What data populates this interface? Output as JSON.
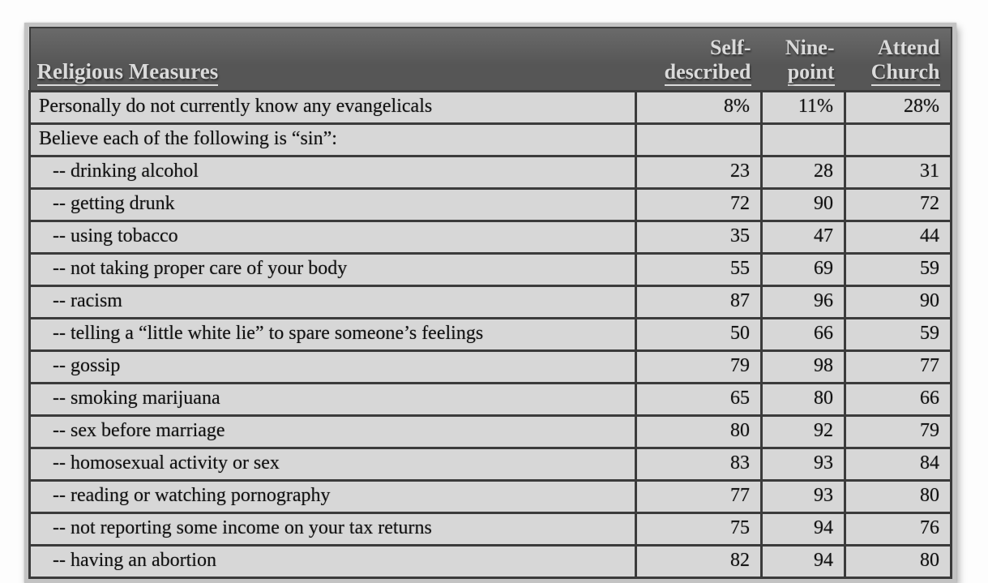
{
  "colors": {
    "page_bg": "#fdfdfd",
    "frame": "#c3c3c3",
    "header_bg": "#565656",
    "header_text": "#dadada",
    "row_bg": "#d7d7d7",
    "border_color": "#3b3b3b",
    "text": "#121212"
  },
  "chart_data": {
    "type": "table",
    "corner_header": "Religious Measures",
    "columns": [
      {
        "label": "Self-described",
        "line1": "Self-",
        "line2": "described"
      },
      {
        "label": "Nine-point",
        "line1": "Nine-",
        "line2": "point"
      },
      {
        "label": "Attend Church",
        "line1": "Attend",
        "line2": "Church"
      }
    ],
    "rows": [
      {
        "label": "Personally do not currently know any evangelicals",
        "indent": false,
        "values": [
          "8%",
          "11%",
          "28%"
        ]
      },
      {
        "label": "Believe each of the following is “sin”:",
        "indent": false,
        "values": [
          "",
          "",
          ""
        ]
      },
      {
        "label": "-- drinking alcohol",
        "indent": true,
        "values": [
          "23",
          "28",
          "31"
        ]
      },
      {
        "label": "-- getting drunk",
        "indent": true,
        "values": [
          "72",
          "90",
          "72"
        ]
      },
      {
        "label": "-- using tobacco",
        "indent": true,
        "values": [
          "35",
          "47",
          "44"
        ]
      },
      {
        "label": "-- not taking proper care of your body",
        "indent": true,
        "values": [
          "55",
          "69",
          "59"
        ]
      },
      {
        "label": "-- racism",
        "indent": true,
        "values": [
          "87",
          "96",
          "90"
        ]
      },
      {
        "label": "-- telling a “little white lie” to spare someone’s feelings",
        "indent": true,
        "values": [
          "50",
          "66",
          "59"
        ]
      },
      {
        "label": "-- gossip",
        "indent": true,
        "values": [
          "79",
          "98",
          "77"
        ]
      },
      {
        "label": "-- smoking marijuana",
        "indent": true,
        "values": [
          "65",
          "80",
          "66"
        ]
      },
      {
        "label": "-- sex before marriage",
        "indent": true,
        "values": [
          "80",
          "92",
          "79"
        ]
      },
      {
        "label": "-- homosexual activity or sex",
        "indent": true,
        "values": [
          "83",
          "93",
          "84"
        ]
      },
      {
        "label": "-- reading or watching pornography",
        "indent": true,
        "values": [
          "77",
          "93",
          "80"
        ]
      },
      {
        "label": "-- not reporting some income on your tax returns",
        "indent": true,
        "values": [
          "75",
          "94",
          "76"
        ]
      },
      {
        "label": "-- having an abortion",
        "indent": true,
        "values": [
          "82",
          "94",
          "80"
        ]
      }
    ]
  }
}
